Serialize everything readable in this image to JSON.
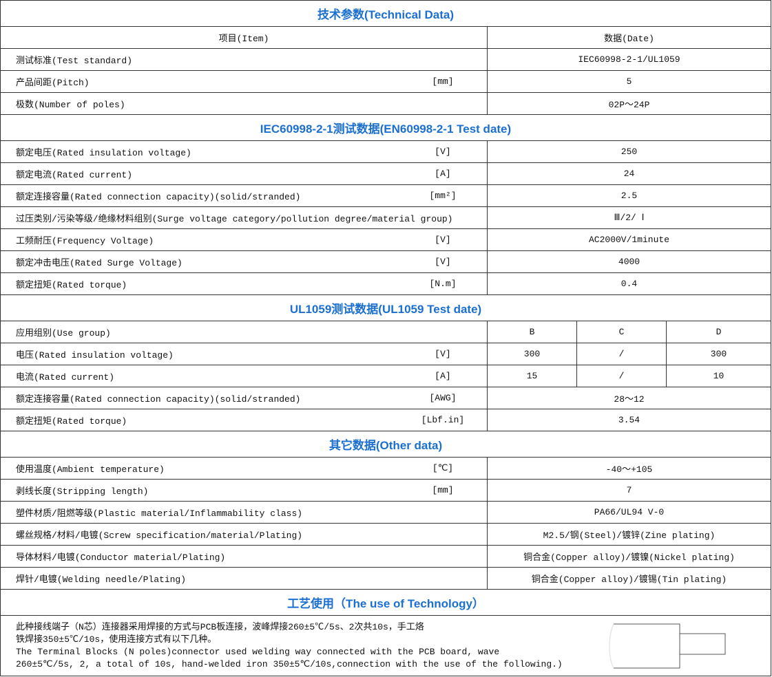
{
  "title": "技术参数(Technical Data)",
  "header": {
    "item": "项目(Item)",
    "data": "数据(Date)"
  },
  "general": [
    {
      "label": "测试标准(Test standard)",
      "unit": "",
      "value": "IEC60998-2-1/UL1059"
    },
    {
      "label": "产品间距(Pitch)",
      "unit": "[mm]",
      "value": "5"
    },
    {
      "label": "极数(Number of poles)",
      "unit": "",
      "value": "02P～24P"
    }
  ],
  "iec_title": "IEC60998-2-1测试数据(EN60998-2-1 Test date)",
  "iec": [
    {
      "label": "额定电压(Rated insulation voltage)",
      "unit": "[V]",
      "value": "250"
    },
    {
      "label": "额定电流(Rated current)",
      "unit": "[A]",
      "value": "24"
    },
    {
      "label": "额定连接容量(Rated connection capacity)(solid/stranded)",
      "unit": "[mm²]",
      "value": "2.5"
    },
    {
      "label": "过压类别/污染等级/绝缘材料组别(Surge voltage category/pollution degree/material group)",
      "unit": "",
      "value": "Ⅲ/2/ Ⅰ"
    },
    {
      "label": "工频耐压(Frequency Voltage)",
      "unit": "[V]",
      "value": "AC2000V/1minute"
    },
    {
      "label": "额定冲击电压(Rated Surge Voltage)",
      "unit": "[V]",
      "value": "4000"
    },
    {
      "label": "额定扭矩(Rated torque)",
      "unit": "[N.m]",
      "value": "0.4"
    }
  ],
  "ul_title": "UL1059测试数据(UL1059 Test date)",
  "ul_multi": [
    {
      "label": "应用组别(Use group)",
      "unit": "",
      "values": [
        "B",
        "C",
        "D"
      ]
    },
    {
      "label": "电压(Rated insulation voltage)",
      "unit": "[V]",
      "values": [
        "300",
        "/",
        "300"
      ]
    },
    {
      "label": "电流(Rated current)",
      "unit": "[A]",
      "values": [
        "15",
        "/",
        "10"
      ]
    }
  ],
  "ul": [
    {
      "label": "额定连接容量(Rated connection capacity)(solid/stranded)",
      "unit": "[AWG]",
      "value": "28～12"
    },
    {
      "label": "额定扭矩(Rated torque)",
      "unit": "[Lbf.in]",
      "value": "3.54"
    }
  ],
  "other_title": "其它数据(Other data)",
  "other": [
    {
      "label": "使用温度(Ambient temperature)",
      "unit": "[℃]",
      "value": "-40～+105"
    },
    {
      "label": "剥线长度(Stripping length)",
      "unit": "[mm]",
      "value": "7"
    },
    {
      "label": "塑件材质/阻燃等级(Plastic material/Inflammability class)",
      "unit": "",
      "value": "PA66/UL94 V-0"
    },
    {
      "label": "螺丝规格/材料/电镀(Screw specification/material/Plating)",
      "unit": "",
      "value": "M2.5/钢(Steel)/镀锌(Zine plating)"
    },
    {
      "label": "导体材料/电镀(Conductor material/Plating)",
      "unit": "",
      "value": "铜合金(Copper alloy)/镀镍(Nickel plating)"
    },
    {
      "label": "焊针/电镀(Welding needle/Plating)",
      "unit": "",
      "value": "铜合金(Copper alloy)/镀锡(Tin plating)"
    }
  ],
  "tech_title": "工艺使用（The use of Technology）",
  "tech_lines": [
    "此种接线端子（N芯）连接器采用焊接的方式与PCB板连接，波峰焊接260±5℃/5s、2次共10s，手工烙",
    "铁焊接350±5℃/10s，使用连接方式有以下几种。",
    "The Terminal Blocks (N poles)connector used welding way connected with the PCB board, wave",
    "260±5℃/5s, 2, a total of 10s, hand-welded iron 350±5℃/10s,connection with the use of the following.)"
  ],
  "colors": {
    "heading": "#1a6fd0",
    "border": "#333333"
  }
}
